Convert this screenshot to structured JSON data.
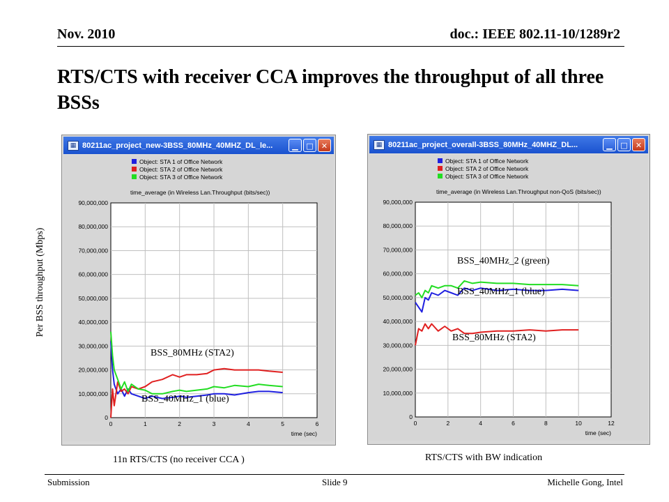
{
  "header": {
    "date": "Nov. 2010",
    "doc": "doc.: IEEE 802.11-10/1289r2"
  },
  "title": "RTS/CTS with receiver CCA improves the throughput of all three BSSs",
  "shared_ylabel": "Per BSS throughput (Mbps)",
  "footer": {
    "left": "Submission",
    "center": "Slide 9",
    "right": "Michelle Gong, Intel"
  },
  "windows": [
    {
      "title": "80211ac_project_new-3BSS_80MHz_40MHZ_DL_le...",
      "caption": "11n RTS/CTS (no receiver CCA )"
    },
    {
      "title": "80211ac_project_overall-3BSS_80MHz_40MHZ_DL...",
      "caption": "RTS/CTS with BW indication"
    }
  ],
  "colors": {
    "sta1": "#1f1fe0",
    "sta2": "#e02020",
    "sta3": "#22dd22",
    "plot_bg": "#ffffff",
    "window_bg": "#d9d9d9",
    "titlebar": "#245edb"
  },
  "chart_data": [
    {
      "type": "line",
      "legend": [
        "Object: STA 1 of Office Network",
        "Object: STA 2 of Office Network",
        "Object: STA 3 of Office Network"
      ],
      "legend_position": "top-left",
      "subtitle": "time_average (in Wireless Lan.Throughput (bits/sec))",
      "xlabel": "time (sec)",
      "xlim": [
        0,
        6
      ],
      "xticks": [
        0,
        1,
        2,
        3,
        4,
        5,
        6
      ],
      "ylim": [
        0,
        90000000
      ],
      "yticks": [
        "0",
        "10,000,000",
        "20,000,000",
        "30,000,000",
        "40,000,000",
        "50,000,000",
        "60,000,000",
        "70,000,000",
        "80,000,000",
        "90,000,000"
      ],
      "grid": true,
      "annotations": [
        "BSS_80MHz (STA2)",
        "BSS_40MHz_1 (blue)"
      ],
      "series": [
        {
          "name": "Object: STA 1 of Office Network",
          "color": "sta1",
          "x": [
            0,
            0.05,
            0.1,
            0.2,
            0.3,
            0.4,
            0.5,
            0.6,
            0.8,
            1.0,
            1.2,
            1.5,
            1.8,
            2.0,
            2.2,
            2.5,
            2.8,
            3.0,
            3.3,
            3.6,
            4.0,
            4.3,
            4.6,
            5.0
          ],
          "y": [
            32000000,
            20000000,
            14000000,
            10000000,
            12000000,
            9000000,
            12000000,
            10000000,
            9000000,
            8000000,
            9000000,
            8000000,
            8500000,
            9000000,
            8500000,
            9000000,
            9500000,
            10000000,
            10000000,
            9500000,
            10500000,
            11000000,
            11000000,
            10500000
          ]
        },
        {
          "name": "Object: STA 2 of Office Network",
          "color": "sta2",
          "x": [
            0,
            0.05,
            0.1,
            0.2,
            0.3,
            0.4,
            0.5,
            0.6,
            0.8,
            1.0,
            1.2,
            1.5,
            1.8,
            2.0,
            2.2,
            2.5,
            2.8,
            3.0,
            3.3,
            3.6,
            4.0,
            4.3,
            4.6,
            5.0
          ],
          "y": [
            0,
            12000000,
            5000000,
            15000000,
            11000000,
            12000000,
            10000000,
            13000000,
            12000000,
            13000000,
            15000000,
            16000000,
            18000000,
            17000000,
            18000000,
            18000000,
            18500000,
            20000000,
            20500000,
            20000000,
            20000000,
            20000000,
            19500000,
            19000000
          ]
        },
        {
          "name": "Object: STA 3 of Office Network",
          "color": "sta3",
          "x": [
            0,
            0.05,
            0.1,
            0.2,
            0.3,
            0.4,
            0.5,
            0.6,
            0.8,
            1.0,
            1.2,
            1.5,
            1.8,
            2.0,
            2.2,
            2.5,
            2.8,
            3.0,
            3.3,
            3.6,
            4.0,
            4.3,
            4.6,
            5.0
          ],
          "y": [
            36000000,
            26000000,
            20000000,
            16000000,
            12000000,
            15000000,
            11000000,
            14000000,
            12000000,
            11500000,
            10000000,
            10000000,
            11000000,
            11500000,
            11000000,
            11500000,
            12000000,
            13000000,
            12500000,
            13500000,
            13000000,
            14000000,
            13500000,
            13000000
          ]
        }
      ]
    },
    {
      "type": "line",
      "legend": [
        "Object: STA 1 of Office Network",
        "Object: STA 2 of Office Network",
        "Object: STA 3 of Office Network"
      ],
      "legend_position": "top-left",
      "subtitle": "time_average (in Wireless Lan.Throughput non-QoS (bits/sec))",
      "xlabel": "time (sec)",
      "xlim": [
        0,
        12
      ],
      "xticks": [
        0,
        2,
        4,
        6,
        8,
        10,
        12
      ],
      "ylim": [
        0,
        90000000
      ],
      "yticks": [
        "0",
        "10,000,000",
        "20,000,000",
        "30,000,000",
        "40,000,000",
        "50,000,000",
        "60,000,000",
        "70,000,000",
        "80,000,000",
        "90,000,000"
      ],
      "grid": true,
      "annotations": [
        "BSS_40MHz_2 (green)",
        "BSS_40MHz_1 (blue)",
        "BSS_80MHz (STA2)"
      ],
      "series": [
        {
          "name": "Object: STA 1 of Office Network",
          "color": "sta1",
          "x": [
            0,
            0.2,
            0.4,
            0.6,
            0.8,
            1.0,
            1.4,
            1.8,
            2.2,
            2.6,
            3.0,
            3.5,
            4.0,
            5.0,
            6.0,
            7.0,
            8.0,
            9.0,
            10.0
          ],
          "y": [
            48000000,
            46000000,
            44000000,
            50000000,
            49000000,
            52000000,
            51000000,
            53000000,
            52000000,
            51000000,
            54000000,
            53000000,
            54000000,
            53000000,
            53500000,
            53000000,
            53000000,
            53500000,
            53000000
          ]
        },
        {
          "name": "Object: STA 2 of Office Network",
          "color": "sta2",
          "x": [
            0,
            0.2,
            0.4,
            0.6,
            0.8,
            1.0,
            1.4,
            1.8,
            2.2,
            2.6,
            3.0,
            3.5,
            4.0,
            5.0,
            6.0,
            7.0,
            8.0,
            9.0,
            10.0
          ],
          "y": [
            30000000,
            37000000,
            36000000,
            39000000,
            37000000,
            39000000,
            36000000,
            38000000,
            36000000,
            37000000,
            35000000,
            35000000,
            35500000,
            36000000,
            36000000,
            36500000,
            36000000,
            36500000,
            36500000
          ]
        },
        {
          "name": "Object: STA 3 of Office Network",
          "color": "sta3",
          "x": [
            0,
            0.2,
            0.4,
            0.6,
            0.8,
            1.0,
            1.4,
            1.8,
            2.2,
            2.6,
            3.0,
            3.5,
            4.0,
            5.0,
            6.0,
            7.0,
            8.0,
            9.0,
            10.0
          ],
          "y": [
            51000000,
            52000000,
            50000000,
            53000000,
            52000000,
            55000000,
            54000000,
            55000000,
            55000000,
            54000000,
            57000000,
            56000000,
            56500000,
            56000000,
            56000000,
            55500000,
            55500000,
            55500000,
            55000000
          ]
        }
      ]
    }
  ]
}
